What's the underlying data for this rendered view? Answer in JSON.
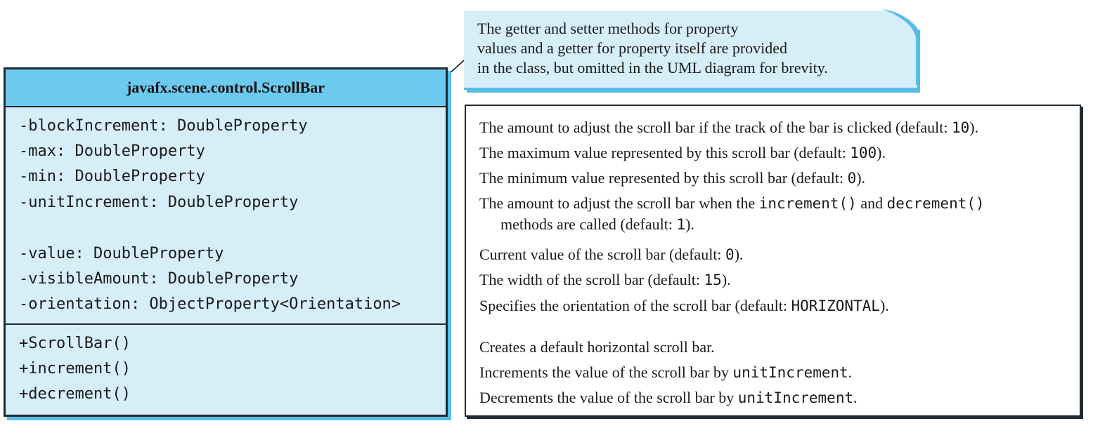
{
  "uml": {
    "class_name": "javafx.scene.control.ScrollBar",
    "attributes": [
      "-blockIncrement: DoubleProperty",
      "-max: DoubleProperty",
      "-min: DoubleProperty",
      "-unitIncrement: DoubleProperty",
      "-value: DoubleProperty",
      "-visibleAmount: DoubleProperty",
      "-orientation: ObjectProperty<Orientation>"
    ],
    "methods": [
      "+ScrollBar()",
      "+increment()",
      "+decrement()"
    ]
  },
  "note": {
    "lines": [
      "The getter and setter methods for property",
      "values and a getter for property itself are provided",
      "in the class, but omitted in the UML diagram for brevity."
    ]
  },
  "descriptions": {
    "block_increment": {
      "text": "The amount to adjust the scroll bar if the track of the bar is clicked (default: ",
      "code": "10",
      "end": ")."
    },
    "max": {
      "text": "The maximum value represented by this scroll bar (default: ",
      "code": "100",
      "end": ")."
    },
    "min": {
      "text": "The minimum value represented by this scroll bar (default: ",
      "code": "0",
      "end": ")."
    },
    "unit_increment": {
      "text1": "The amount to adjust the scroll bar when the ",
      "code1": "increment()",
      "text2": " and ",
      "code2": "decrement()",
      "text3": "methods are called (default: ",
      "code3": "1",
      "end": ")."
    },
    "value": {
      "text": "Current value of the scroll bar (default: ",
      "code": "0",
      "end": ")."
    },
    "visible_amount": {
      "text": "The width of the scroll bar (default: ",
      "code": "15",
      "end": ")."
    },
    "orientation": {
      "text": "Specifies the orientation of the scroll bar (default: ",
      "code": "HORIZONTAL",
      "end": ")."
    },
    "constructor": {
      "text": "Creates a default horizontal scroll bar."
    },
    "increment": {
      "text": "Increments the value of the scroll bar by ",
      "code": "unitIncrement",
      "end": "."
    },
    "decrement": {
      "text": "Decrements the value of the scroll bar by ",
      "code": "unitIncrement",
      "end": "."
    }
  },
  "colors": {
    "class_header": "#6dcaef",
    "class_body": "#d6eef8",
    "shadow": "#57bde6",
    "border": "#1f2a30"
  }
}
